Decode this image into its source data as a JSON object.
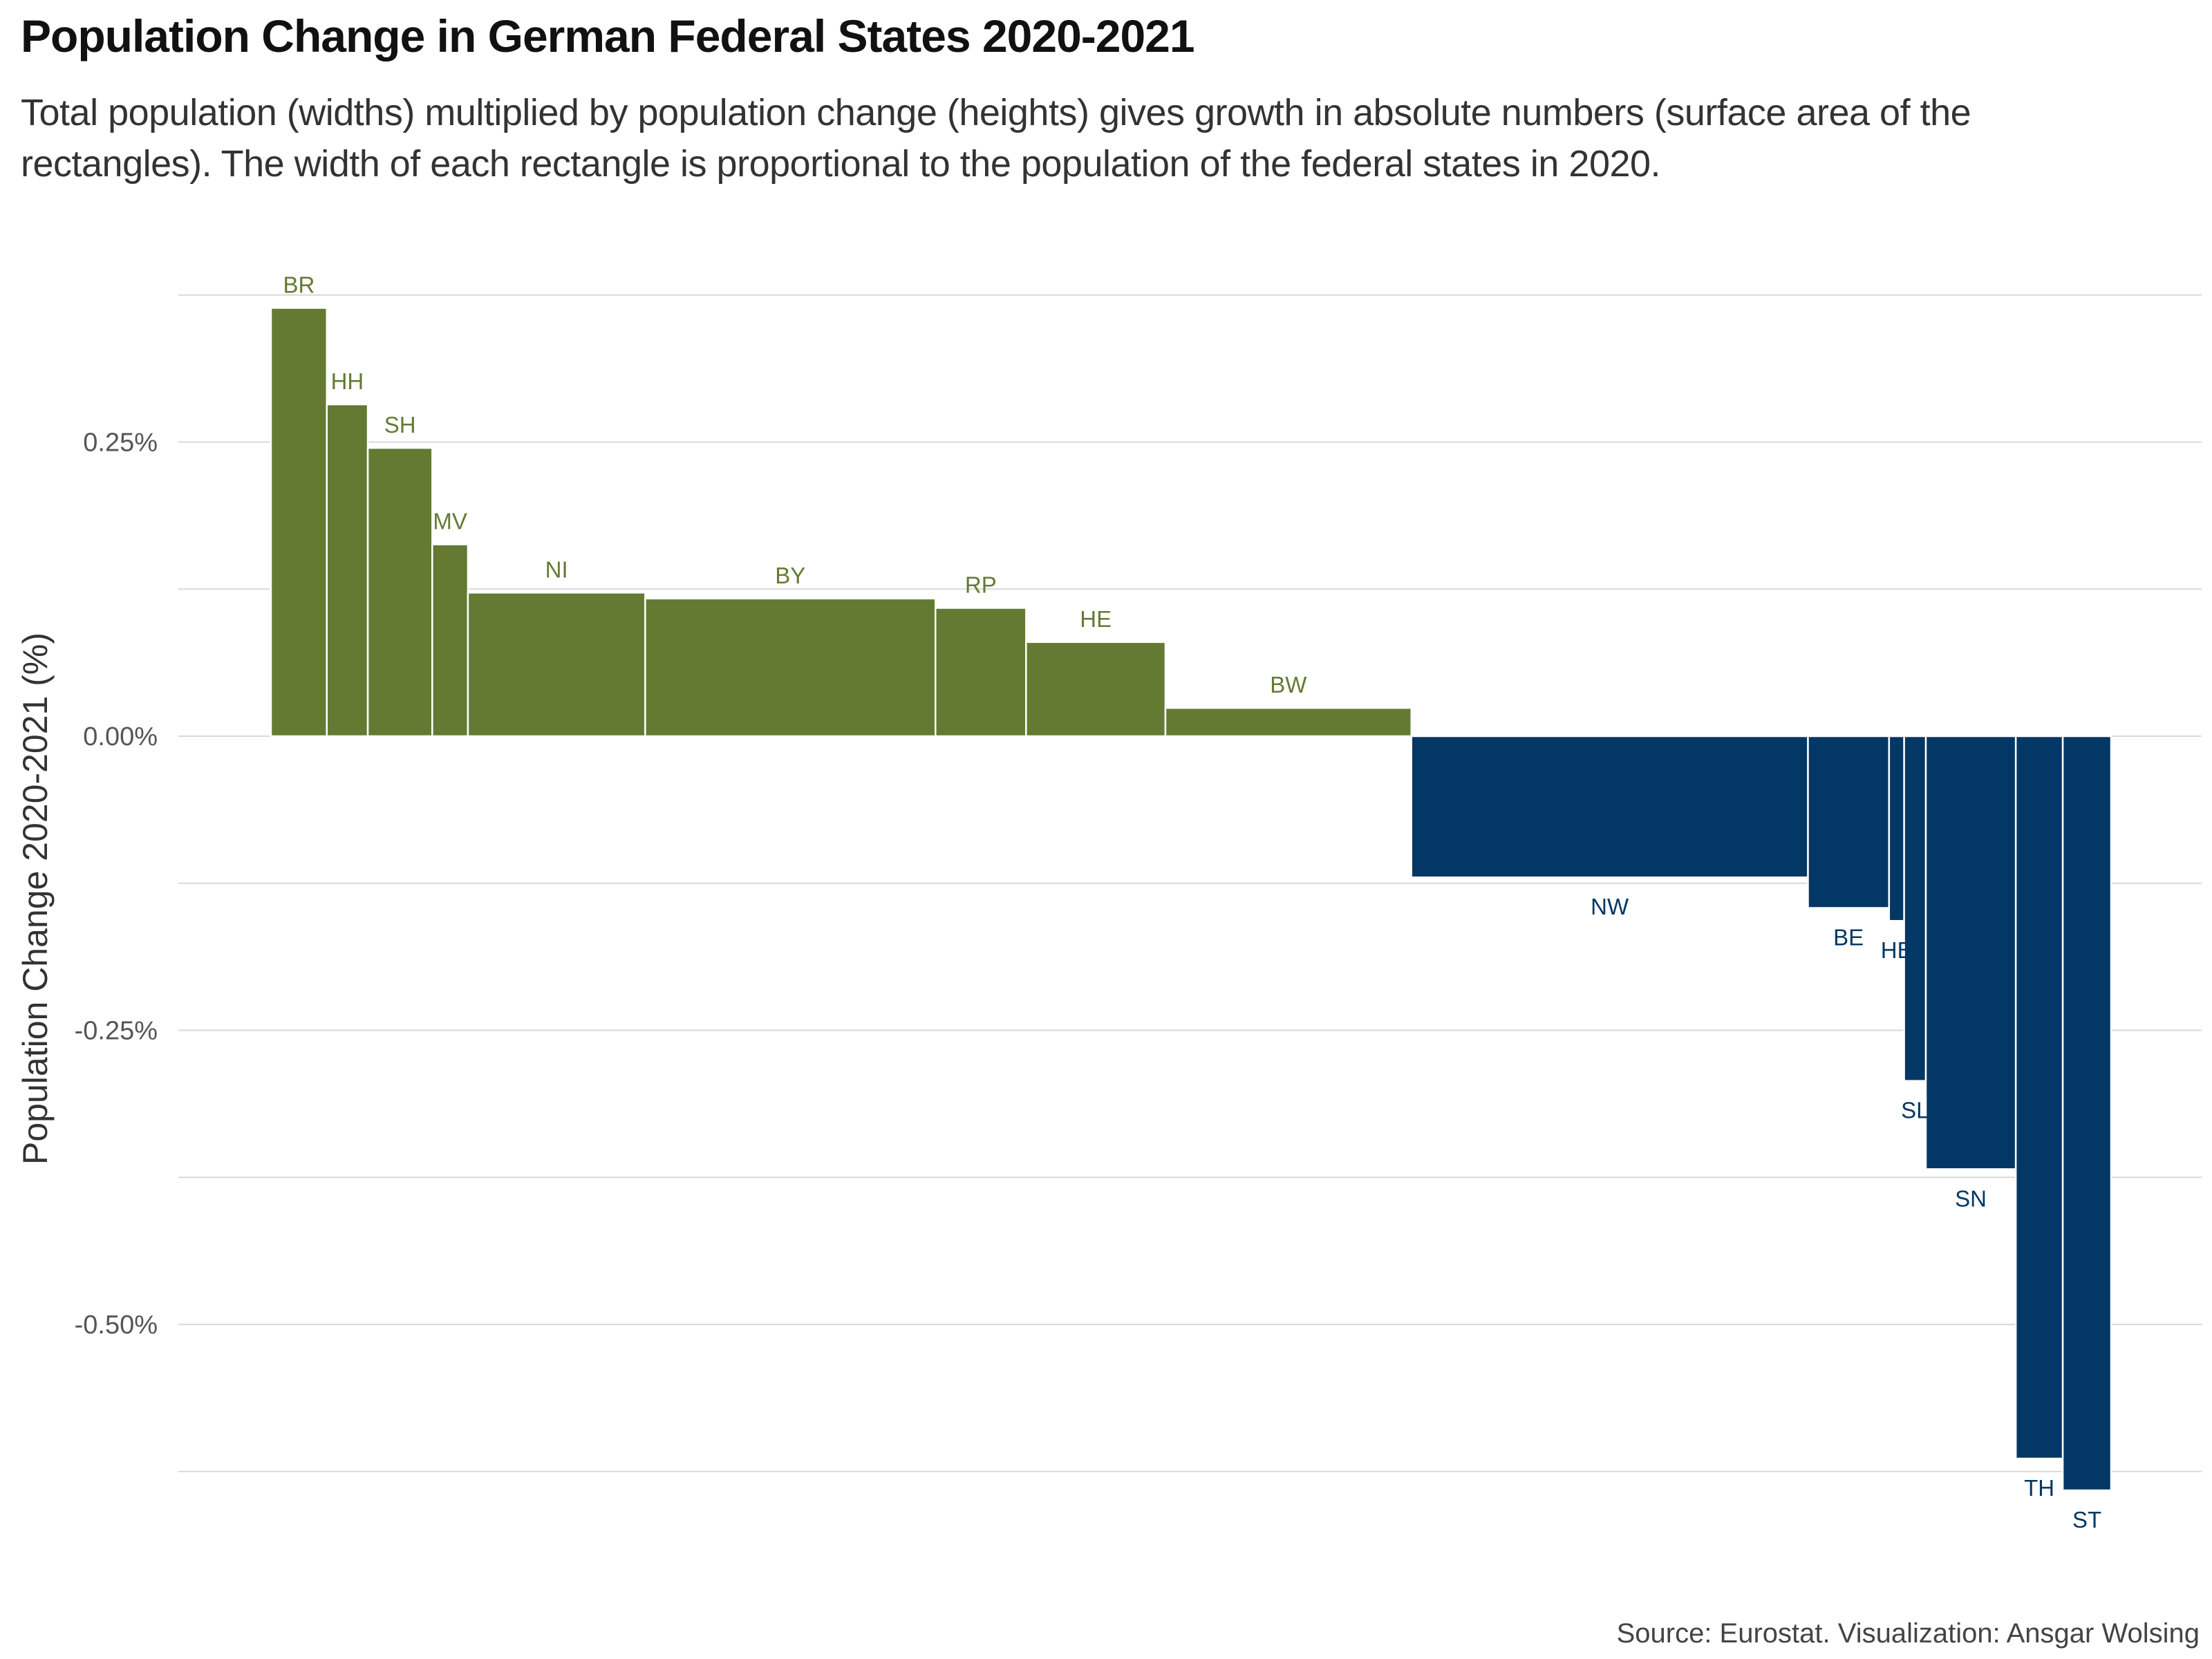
{
  "title": "Population Change in German Federal States 2020-2021",
  "subtitle": "Total population (widths) multiplied by population change (heights) gives growth in absolute numbers (surface area of the rectangles). The width of each rectangle is proportional to the population of the federal states in 2020.",
  "caption": "Source: Eurostat. Visualization: Ansgar Wolsing",
  "chart_data": {
    "type": "bar",
    "variable_width": true,
    "ylabel": "Population Change 2020-2021 (%)",
    "ylim": [
      -0.625,
      0.375
    ],
    "y_ticks": [
      {
        "value": 0.25,
        "label": "0.25%"
      },
      {
        "value": 0.0,
        "label": "0.00%"
      },
      {
        "value": -0.25,
        "label": "-0.25%"
      },
      {
        "value": -0.5,
        "label": "-0.50%"
      }
    ],
    "y_gridlines": [
      0.375,
      0.25,
      0.125,
      0.0,
      -0.125,
      -0.25,
      -0.375,
      -0.5,
      -0.625
    ],
    "grid": true,
    "legend": "none",
    "colors": {
      "positive": "#647a33",
      "negative": "#033765",
      "grid": "#d9d9d9"
    },
    "bars": [
      {
        "label": "BR",
        "population_2020": 2.52,
        "change": 0.364
      },
      {
        "label": "HH",
        "population_2020": 1.85,
        "change": 0.282
      },
      {
        "label": "SH",
        "population_2020": 2.91,
        "change": 0.245
      },
      {
        "label": "MV",
        "population_2020": 1.61,
        "change": 0.163
      },
      {
        "label": "NI",
        "population_2020": 8.0,
        "change": 0.122
      },
      {
        "label": "BY",
        "population_2020": 13.1,
        "change": 0.117
      },
      {
        "label": "RP",
        "population_2020": 4.09,
        "change": 0.109
      },
      {
        "label": "HE",
        "population_2020": 6.29,
        "change": 0.08
      },
      {
        "label": "BW",
        "population_2020": 11.1,
        "change": 0.024
      },
      {
        "label": "NW",
        "population_2020": 17.9,
        "change": -0.12
      },
      {
        "label": "BE",
        "population_2020": 3.66,
        "change": -0.146
      },
      {
        "label": "HB",
        "population_2020": 0.68,
        "change": -0.157
      },
      {
        "label": "SL",
        "population_2020": 0.98,
        "change": -0.293
      },
      {
        "label": "SN",
        "population_2020": 4.06,
        "change": -0.368
      },
      {
        "label": "TH",
        "population_2020": 2.12,
        "change": -0.614
      },
      {
        "label": "ST",
        "population_2020": 2.18,
        "change": -0.641
      }
    ]
  }
}
